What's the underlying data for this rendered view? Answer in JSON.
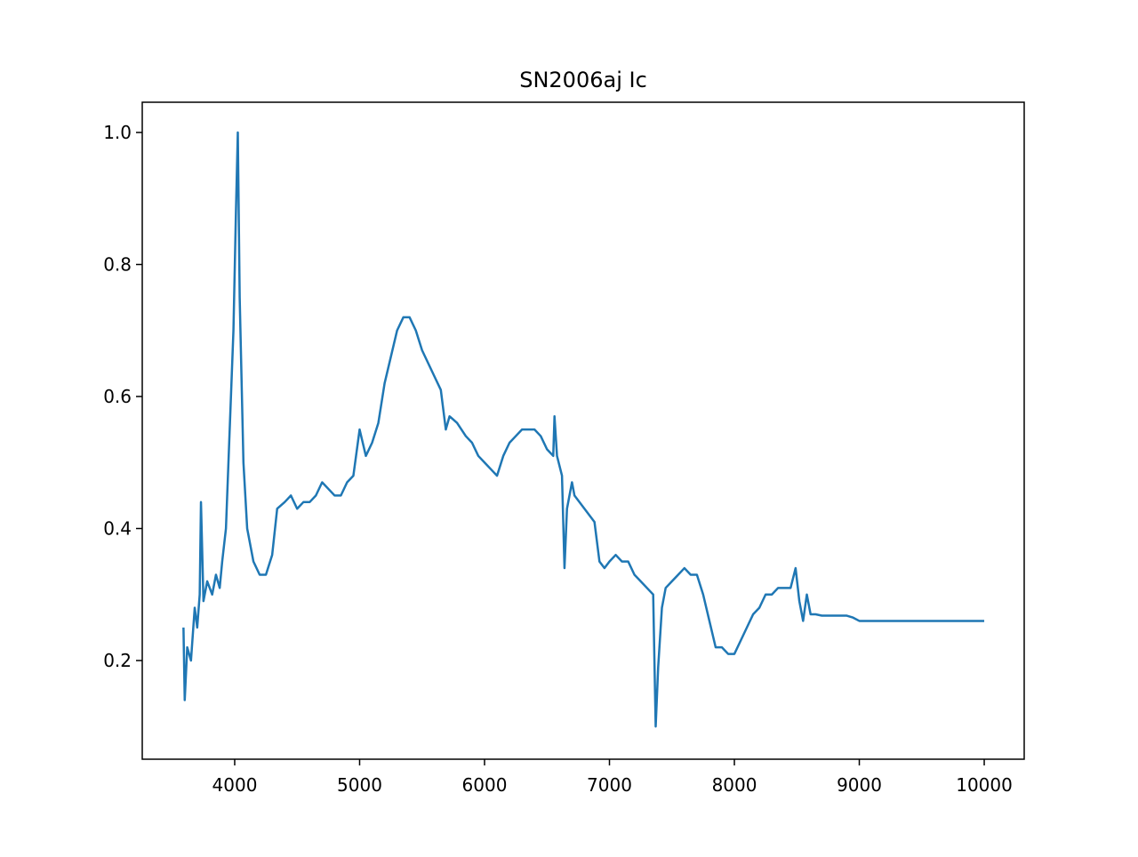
{
  "chart_data": {
    "type": "line",
    "title": "SN2006aj Ic",
    "x": [
      3590,
      3600,
      3620,
      3650,
      3680,
      3700,
      3720,
      3730,
      3750,
      3780,
      3820,
      3850,
      3880,
      3900,
      3930,
      3960,
      3990,
      4010,
      4025,
      4040,
      4070,
      4100,
      4150,
      4200,
      4250,
      4300,
      4340,
      4400,
      4450,
      4500,
      4550,
      4600,
      4650,
      4700,
      4750,
      4800,
      4850,
      4900,
      4950,
      5000,
      5050,
      5100,
      5150,
      5200,
      5250,
      5300,
      5350,
      5400,
      5450,
      5500,
      5550,
      5600,
      5650,
      5690,
      5720,
      5780,
      5850,
      5900,
      5950,
      6000,
      6050,
      6100,
      6150,
      6200,
      6250,
      6300,
      6350,
      6400,
      6450,
      6500,
      6550,
      6560,
      6580,
      6620,
      6640,
      6660,
      6700,
      6720,
      6800,
      6880,
      6920,
      6960,
      7000,
      7050,
      7100,
      7150,
      7200,
      7250,
      7300,
      7350,
      7370,
      7390,
      7420,
      7450,
      7500,
      7550,
      7600,
      7650,
      7700,
      7750,
      7800,
      7850,
      7900,
      7950,
      8000,
      8050,
      8100,
      8150,
      8200,
      8250,
      8300,
      8350,
      8400,
      8450,
      8490,
      8520,
      8550,
      8580,
      8610,
      8650,
      8700,
      8800,
      8900,
      8950,
      9000,
      9100,
      10000
    ],
    "series": [
      {
        "color": "#1f77b4",
        "values": [
          0.25,
          0.14,
          0.22,
          0.2,
          0.28,
          0.25,
          0.3,
          0.44,
          0.29,
          0.32,
          0.3,
          0.33,
          0.31,
          0.35,
          0.4,
          0.55,
          0.7,
          0.88,
          1.0,
          0.75,
          0.5,
          0.4,
          0.35,
          0.33,
          0.33,
          0.36,
          0.43,
          0.44,
          0.45,
          0.43,
          0.44,
          0.44,
          0.45,
          0.47,
          0.46,
          0.45,
          0.45,
          0.47,
          0.48,
          0.55,
          0.51,
          0.53,
          0.56,
          0.62,
          0.66,
          0.7,
          0.72,
          0.72,
          0.7,
          0.67,
          0.65,
          0.63,
          0.61,
          0.55,
          0.57,
          0.56,
          0.54,
          0.53,
          0.51,
          0.5,
          0.49,
          0.48,
          0.51,
          0.53,
          0.54,
          0.55,
          0.55,
          0.55,
          0.54,
          0.52,
          0.51,
          0.57,
          0.51,
          0.48,
          0.34,
          0.43,
          0.47,
          0.45,
          0.43,
          0.41,
          0.35,
          0.34,
          0.35,
          0.36,
          0.35,
          0.35,
          0.33,
          0.32,
          0.31,
          0.3,
          0.1,
          0.19,
          0.28,
          0.31,
          0.32,
          0.33,
          0.34,
          0.33,
          0.33,
          0.3,
          0.26,
          0.22,
          0.22,
          0.21,
          0.21,
          0.23,
          0.25,
          0.27,
          0.28,
          0.3,
          0.3,
          0.31,
          0.31,
          0.31,
          0.34,
          0.29,
          0.26,
          0.3,
          0.27,
          0.27,
          0.268,
          0.268,
          0.268,
          0.265,
          0.26,
          0.26,
          0.26
        ]
      }
    ],
    "xlim": [
      3260,
      10320
    ],
    "ylim": [
      0.0505,
      1.0458
    ],
    "xticks": [
      4000,
      5000,
      6000,
      7000,
      8000,
      9000,
      10000
    ],
    "yticks": [
      0.2,
      0.4,
      0.6,
      0.8,
      {
        "value": 1,
        "label": "1.0"
      }
    ]
  }
}
